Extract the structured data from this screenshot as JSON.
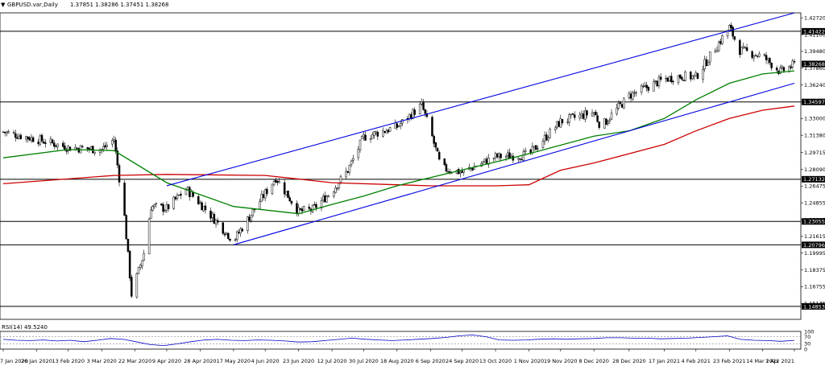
{
  "header": {
    "symbol": "GBPUSD.var,Daily",
    "ohlc": "1.37851 1.38286 1.37451 1.38268"
  },
  "rsi_header": "RSI(14) 49.5240",
  "colors": {
    "background": "#ffffff",
    "candle": "#000000",
    "channel": "#0000e0",
    "ma_fast": "#008000",
    "ma_slow": "#cc0000",
    "rsi_line": "#0000c8",
    "level_line": "#000000"
  },
  "chart_data": [
    {
      "type": "candlestick",
      "title": "GBPUSD.var,Daily",
      "ylim": [
        1.136,
        1.432
      ],
      "y_ticks": [
        "1.42720",
        "1.41100",
        "1.39480",
        "1.37860",
        "1.36240",
        "1.34620",
        "1.33000",
        "1.31380",
        "1.29715",
        "1.28090",
        "1.26475",
        "1.24855",
        "1.23235",
        "1.21615",
        "1.19995",
        "1.18375",
        "1.16755",
        "1.15135"
      ],
      "x_ticks": [
        "7 Jan 2020",
        "26 Jan 2020",
        "13 Feb 2020",
        "3 Mar 2020",
        "22 Mar 2020",
        "9 Apr 2020",
        "28 Apr 2020",
        "17 May 2020",
        "4 Jun 2020",
        "23 Jun 2020",
        "12 Jul 2020",
        "30 Jul 2020",
        "18 Aug 2020",
        "6 Sep 2020",
        "24 Sep 2020",
        "13 Oct 2020",
        "1 Nov 2020",
        "19 Nov 2020",
        "8 Dec 2020",
        "28 Dec 2020",
        "17 Jan 2021",
        "4 Feb 2021",
        "23 Feb 2021",
        "14 Mar 2021",
        "1 Apr 2021"
      ],
      "horizontal_levels": [
        {
          "label": "1.41422",
          "value": 1.41422
        },
        {
          "label": "1.34597",
          "value": 1.34597
        },
        {
          "label": "1.27132",
          "value": 1.27132
        },
        {
          "label": "1.23055",
          "value": 1.23055
        },
        {
          "label": "1.20796",
          "value": 1.20796
        },
        {
          "label": "1.14853",
          "value": 1.14853
        }
      ],
      "current_price": {
        "label": "1.38268",
        "value": 1.38268
      },
      "trend_channel": {
        "upper": [
          {
            "x": "9 Apr 2020",
            "y": 1.265
          },
          {
            "x": "1 Apr 2021",
            "y": 1.432
          }
        ],
        "lower": [
          {
            "x": "17 May 2020",
            "y": 1.208
          },
          {
            "x": "1 Apr 2021",
            "y": 1.364
          }
        ]
      },
      "anchors": [
        {
          "x": "7 Jan 2020",
          "y": 1.317
        },
        {
          "x": "26 Jan 2020",
          "y": 1.31
        },
        {
          "x": "13 Feb 2020",
          "y": 1.302
        },
        {
          "x": "3 Mar 2020",
          "y": 1.3
        },
        {
          "x": "10 Mar 2020",
          "y": 1.31
        },
        {
          "x": "16 Mar 2020",
          "y": 1.235
        },
        {
          "x": "20 Mar 2020",
          "y": 1.16
        },
        {
          "x": "27 Mar 2020",
          "y": 1.2
        },
        {
          "x": "31 Mar 2020",
          "y": 1.245
        },
        {
          "x": "9 Apr 2020",
          "y": 1.243
        },
        {
          "x": "20 Apr 2020",
          "y": 1.262
        },
        {
          "x": "28 Apr 2020",
          "y": 1.248
        },
        {
          "x": "17 May 2020",
          "y": 1.212
        },
        {
          "x": "26 May 2020",
          "y": 1.235
        },
        {
          "x": "10 Jun 2020",
          "y": 1.273
        },
        {
          "x": "23 Jun 2020",
          "y": 1.24
        },
        {
          "x": "1 Jul 2020",
          "y": 1.242
        },
        {
          "x": "12 Jul 2020",
          "y": 1.26
        },
        {
          "x": "21 Jul 2020",
          "y": 1.28
        },
        {
          "x": "30 Jul 2020",
          "y": 1.312
        },
        {
          "x": "18 Aug 2020",
          "y": 1.322
        },
        {
          "x": "1 Sep 2020",
          "y": 1.343
        },
        {
          "x": "6 Sep 2020",
          "y": 1.318
        },
        {
          "x": "12 Sep 2020",
          "y": 1.282
        },
        {
          "x": "24 Sep 2020",
          "y": 1.278
        },
        {
          "x": "13 Oct 2020",
          "y": 1.293
        },
        {
          "x": "1 Nov 2020",
          "y": 1.295
        },
        {
          "x": "19 Nov 2020",
          "y": 1.327
        },
        {
          "x": "8 Dec 2020",
          "y": 1.336
        },
        {
          "x": "12 Dec 2020",
          "y": 1.322
        },
        {
          "x": "28 Dec 2020",
          "y": 1.352
        },
        {
          "x": "17 Jan 2021",
          "y": 1.368
        },
        {
          "x": "27 Jan 2021",
          "y": 1.371
        },
        {
          "x": "4 Feb 2021",
          "y": 1.37
        },
        {
          "x": "23 Feb 2021",
          "y": 1.418
        },
        {
          "x": "1 Mar 2021",
          "y": 1.396
        },
        {
          "x": "14 Mar 2021",
          "y": 1.39
        },
        {
          "x": "24 Mar 2021",
          "y": 1.375
        },
        {
          "x": "1 Apr 2021",
          "y": 1.382
        }
      ],
      "ma_fast": [
        {
          "x": "7 Jan 2020",
          "y": 1.292
        },
        {
          "x": "13 Feb 2020",
          "y": 1.3
        },
        {
          "x": "10 Mar 2020",
          "y": 1.299
        },
        {
          "x": "9 Apr 2020",
          "y": 1.268
        },
        {
          "x": "17 May 2020",
          "y": 1.245
        },
        {
          "x": "23 Jun 2020",
          "y": 1.238
        },
        {
          "x": "12 Jul 2020",
          "y": 1.247
        },
        {
          "x": "30 Jul 2020",
          "y": 1.255
        },
        {
          "x": "18 Aug 2020",
          "y": 1.265
        },
        {
          "x": "6 Sep 2020",
          "y": 1.273
        },
        {
          "x": "13 Oct 2020",
          "y": 1.288
        },
        {
          "x": "1 Nov 2020",
          "y": 1.296
        },
        {
          "x": "8 Dec 2020",
          "y": 1.313
        },
        {
          "x": "28 Dec 2020",
          "y": 1.318
        },
        {
          "x": "17 Jan 2021",
          "y": 1.33
        },
        {
          "x": "4 Feb 2021",
          "y": 1.348
        },
        {
          "x": "23 Feb 2021",
          "y": 1.364
        },
        {
          "x": "14 Mar 2021",
          "y": 1.373
        },
        {
          "x": "1 Apr 2021",
          "y": 1.376
        }
      ],
      "ma_slow": [
        {
          "x": "7 Jan 2020",
          "y": 1.267
        },
        {
          "x": "10 Mar 2020",
          "y": 1.275
        },
        {
          "x": "9 Apr 2020",
          "y": 1.276
        },
        {
          "x": "4 Jun 2020",
          "y": 1.275
        },
        {
          "x": "12 Jul 2020",
          "y": 1.268
        },
        {
          "x": "18 Aug 2020",
          "y": 1.266
        },
        {
          "x": "6 Sep 2020",
          "y": 1.265
        },
        {
          "x": "13 Oct 2020",
          "y": 1.265
        },
        {
          "x": "1 Nov 2020",
          "y": 1.266
        },
        {
          "x": "19 Nov 2020",
          "y": 1.28
        },
        {
          "x": "8 Dec 2020",
          "y": 1.287
        },
        {
          "x": "17 Jan 2021",
          "y": 1.305
        },
        {
          "x": "4 Feb 2021",
          "y": 1.318
        },
        {
          "x": "23 Feb 2021",
          "y": 1.33
        },
        {
          "x": "14 Mar 2021",
          "y": 1.338
        },
        {
          "x": "1 Apr 2021",
          "y": 1.342
        }
      ]
    },
    {
      "type": "line",
      "title": "RSI(14) 49.5240",
      "ylim": [
        0,
        100
      ],
      "y_ticks": [
        "100",
        "70",
        "30",
        "0"
      ],
      "levels": [
        70,
        30
      ],
      "values": [
        55,
        50,
        48,
        52,
        46,
        50,
        42,
        50,
        60,
        55,
        40,
        25,
        20,
        30,
        42,
        52,
        55,
        50,
        48,
        52,
        50,
        46,
        40,
        42,
        48,
        55,
        62,
        56,
        52,
        48,
        52,
        56,
        60,
        66,
        75,
        80,
        70,
        52,
        50,
        52,
        56,
        58,
        56,
        58,
        60,
        64,
        64,
        62,
        62,
        58,
        60,
        62,
        66,
        70,
        75,
        55,
        50,
        48,
        44,
        49.5
      ]
    }
  ]
}
